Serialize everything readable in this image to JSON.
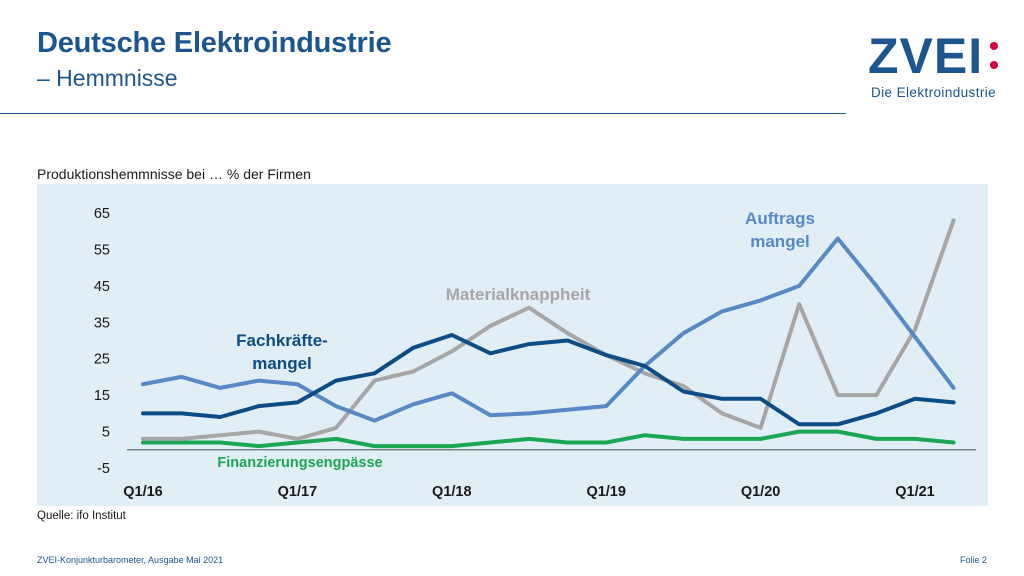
{
  "header": {
    "title": "Deutsche Elektroindustrie",
    "subtitle": "– Hemmnisse"
  },
  "logo": {
    "word": "ZVEI",
    "tagline": "Die Elektroindustrie"
  },
  "footer": {
    "source": "Quelle: ifo Institut",
    "publication": "ZVEI-Konjunkturbarometer, Ausgabe Mai 2021",
    "slide": "Folie 2"
  },
  "colors": {
    "brand": "#1d5591",
    "accent_red": "#d6003d",
    "chart_background": "#e2eef5"
  },
  "chart_data": {
    "type": "line",
    "title": "Produktionshemmnisse bei … % der Firmen",
    "ylim": [
      -5,
      65
    ],
    "yticks": [
      65,
      55,
      45,
      35,
      25,
      15,
      5,
      -5
    ],
    "x_tick_labels": [
      {
        "label": "Q1/16",
        "index": 0
      },
      {
        "label": "Q1/17",
        "index": 4
      },
      {
        "label": "Q1/18",
        "index": 8
      },
      {
        "label": "Q1/19",
        "index": 12
      },
      {
        "label": "Q1/20",
        "index": 16
      },
      {
        "label": "Q1/21",
        "index": 20
      }
    ],
    "x": [
      "Q1/16",
      "Q2/16",
      "Q3/16",
      "Q4/16",
      "Q1/17",
      "Q2/17",
      "Q3/17",
      "Q4/17",
      "Q1/18",
      "Q2/18",
      "Q3/18",
      "Q4/18",
      "Q1/19",
      "Q2/19",
      "Q3/19",
      "Q4/19",
      "Q1/20",
      "Q2/20",
      "Q3/20",
      "Q4/20",
      "Q1/21",
      "Q2/21"
    ],
    "grid": false,
    "zero_line": true,
    "series": [
      {
        "name": "Auftragsmangel",
        "label_lines": [
          "Auftrags",
          "mangel"
        ],
        "color": "#5889c4",
        "values": [
          18,
          20,
          17,
          19,
          18,
          12,
          8,
          12.5,
          15.5,
          9.5,
          10,
          11,
          12,
          23,
          32,
          38,
          41,
          45,
          58,
          45,
          31,
          17
        ]
      },
      {
        "name": "Fachkräftemangel",
        "label_lines": [
          "Fachkräfte-",
          "mangel"
        ],
        "color": "#0e4c86",
        "values": [
          10,
          10,
          9,
          12,
          13,
          19,
          21,
          28,
          31.5,
          26.5,
          29,
          30,
          26,
          23,
          16,
          14,
          14,
          7,
          7,
          10,
          14,
          13
        ]
      },
      {
        "name": "Materialknappheit",
        "label_lines": [
          "Materialknappheit"
        ],
        "color": "#a6a6a6",
        "values": [
          3,
          3,
          4,
          5,
          3,
          6,
          19,
          21.5,
          27,
          34,
          39,
          32,
          26,
          21,
          17.5,
          10,
          6,
          40,
          15,
          15,
          33,
          63
        ]
      },
      {
        "name": "Finanzierungsengpässe",
        "label_lines": [
          "Finanzierungsengpässe"
        ],
        "color": "#1aa653",
        "values": [
          2,
          2,
          2,
          1,
          2,
          3,
          1,
          1,
          1,
          2,
          3,
          2,
          2,
          4,
          3,
          3,
          3,
          5,
          5,
          3,
          3,
          2
        ]
      }
    ]
  }
}
